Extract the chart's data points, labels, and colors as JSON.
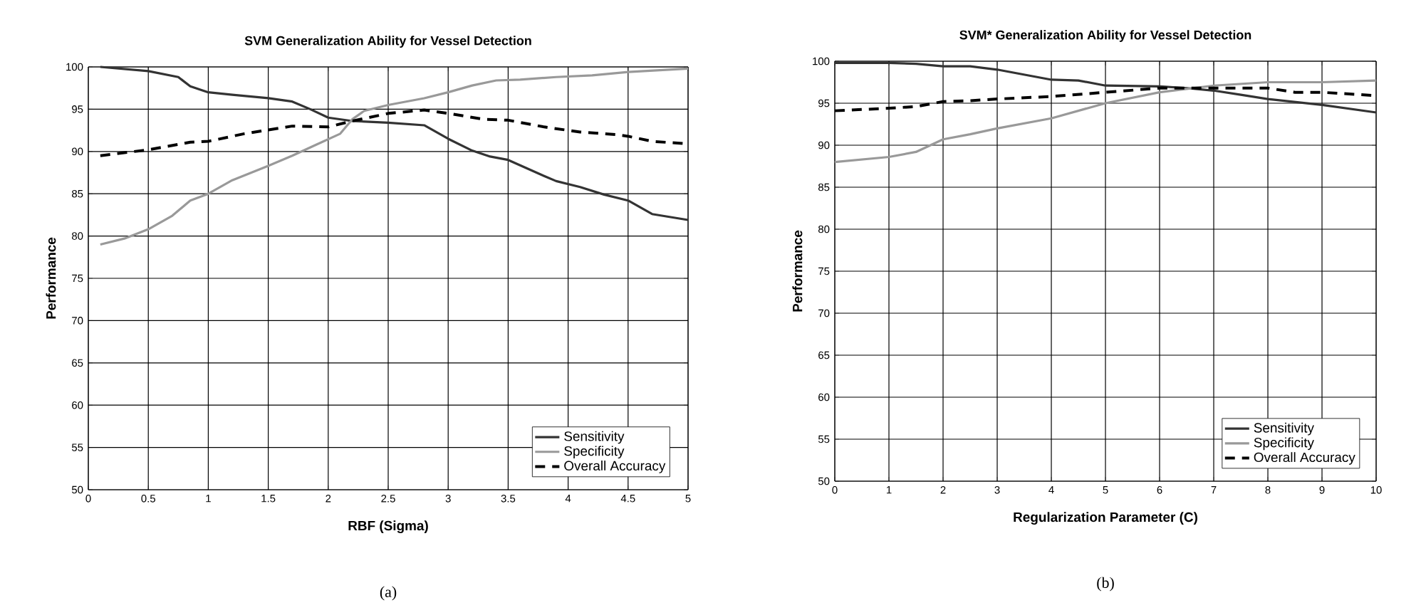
{
  "chart_data": [
    {
      "type": "line",
      "title": "SVM Generalization Ability for Vessel Detection",
      "xlabel": "RBF (Sigma)",
      "ylabel": "Performance",
      "annotations": [
        "(a)"
      ],
      "xlim": [
        0,
        5
      ],
      "ylim": [
        50,
        100
      ],
      "xticks": [
        0,
        0.5,
        1,
        1.5,
        2,
        2.5,
        3,
        3.5,
        4,
        4.5,
        5
      ],
      "yticks": [
        50,
        55,
        60,
        65,
        70,
        75,
        80,
        85,
        90,
        95,
        100
      ],
      "grid": true,
      "legend": "bottom right",
      "series": [
        {
          "name": "Sensitivity",
          "color": "#333333",
          "line_style": "solid",
          "x": [
            0.1,
            0.5,
            0.75,
            0.85,
            1,
            1.2,
            1.5,
            1.7,
            1.85,
            2.0,
            2.2,
            2.5,
            2.8,
            3.0,
            3.2,
            3.35,
            3.5,
            3.8,
            3.9,
            4.1,
            4.3,
            4.5,
            4.7,
            5
          ],
          "values": [
            100,
            99.5,
            98.8,
            97.7,
            97.0,
            96.7,
            96.3,
            95.9,
            95.0,
            94.0,
            93.6,
            93.4,
            93.1,
            91.5,
            90.1,
            89.4,
            89.0,
            87.1,
            86.5,
            85.8,
            84.9,
            84.2,
            82.6,
            81.9
          ]
        },
        {
          "name": "Specificity",
          "color": "#999999",
          "line_style": "solid",
          "x": [
            0.1,
            0.3,
            0.5,
            0.7,
            0.85,
            1,
            1.2,
            1.5,
            1.7,
            1.9,
            2.1,
            2.2,
            2.3,
            2.5,
            2.8,
            3.0,
            3.2,
            3.4,
            3.6,
            3.9,
            4.2,
            4.5,
            5
          ],
          "values": [
            79,
            79.7,
            80.8,
            82.4,
            84.2,
            85,
            86.6,
            88.3,
            89.5,
            90.8,
            92.1,
            93.8,
            94.8,
            95.5,
            96.3,
            97.0,
            97.8,
            98.4,
            98.5,
            98.8,
            99.0,
            99.4,
            99.8
          ]
        },
        {
          "name": "Overall Accuracy",
          "color": "#000000",
          "line_style": "dashed",
          "x": [
            0.1,
            0.5,
            0.85,
            1,
            1.3,
            1.7,
            2.0,
            2.2,
            2.5,
            2.8,
            3.0,
            3.3,
            3.5,
            3.8,
            4.1,
            4.4,
            4.5,
            4.7,
            5
          ],
          "values": [
            89.5,
            90.2,
            91.1,
            91.2,
            92.1,
            93.0,
            92.9,
            93.6,
            94.5,
            94.9,
            94.5,
            93.8,
            93.7,
            92.9,
            92.3,
            92.0,
            91.8,
            91.2,
            90.9
          ]
        }
      ]
    },
    {
      "type": "line",
      "title": "SVM* Generalization Ability for Vessel Detection",
      "xlabel": "Regularization Parameter (C)",
      "ylabel": "Performance",
      "annotations": [
        "(b)"
      ],
      "xlim": [
        0,
        10
      ],
      "ylim": [
        50,
        100
      ],
      "xticks": [
        0,
        1,
        2,
        3,
        4,
        5,
        6,
        7,
        8,
        9,
        10
      ],
      "yticks": [
        50,
        55,
        60,
        65,
        70,
        75,
        80,
        85,
        90,
        95,
        100
      ],
      "grid": true,
      "legend": "bottom right",
      "series": [
        {
          "name": "Sensitivity",
          "color": "#333333",
          "line_style": "solid",
          "x": [
            0,
            1,
            1.5,
            2,
            2.5,
            3,
            3.5,
            4,
            4.5,
            5,
            6,
            6.5,
            7,
            7.5,
            8,
            9,
            10
          ],
          "values": [
            99.8,
            99.8,
            99.7,
            99.4,
            99.4,
            99.0,
            98.4,
            97.8,
            97.7,
            97.1,
            97.0,
            96.8,
            96.5,
            96.0,
            95.5,
            94.8,
            93.9
          ]
        },
        {
          "name": "Specificity",
          "color": "#999999",
          "line_style": "solid",
          "x": [
            0,
            1,
            1.5,
            2,
            2.5,
            3,
            4,
            5,
            6,
            7,
            8,
            9,
            10
          ],
          "values": [
            88,
            88.6,
            89.2,
            90.7,
            91.3,
            92.0,
            93.2,
            95.0,
            96.3,
            97.1,
            97.5,
            97.5,
            97.7
          ]
        },
        {
          "name": "Overall Accuracy",
          "color": "#000000",
          "line_style": "dashed",
          "x": [
            0,
            1,
            1.5,
            2,
            2.5,
            3,
            4,
            5,
            6,
            7,
            8,
            8.5,
            9,
            10
          ],
          "values": [
            94.1,
            94.4,
            94.6,
            95.2,
            95.3,
            95.5,
            95.8,
            96.3,
            96.8,
            96.8,
            96.8,
            96.3,
            96.3,
            95.9
          ]
        }
      ]
    }
  ]
}
